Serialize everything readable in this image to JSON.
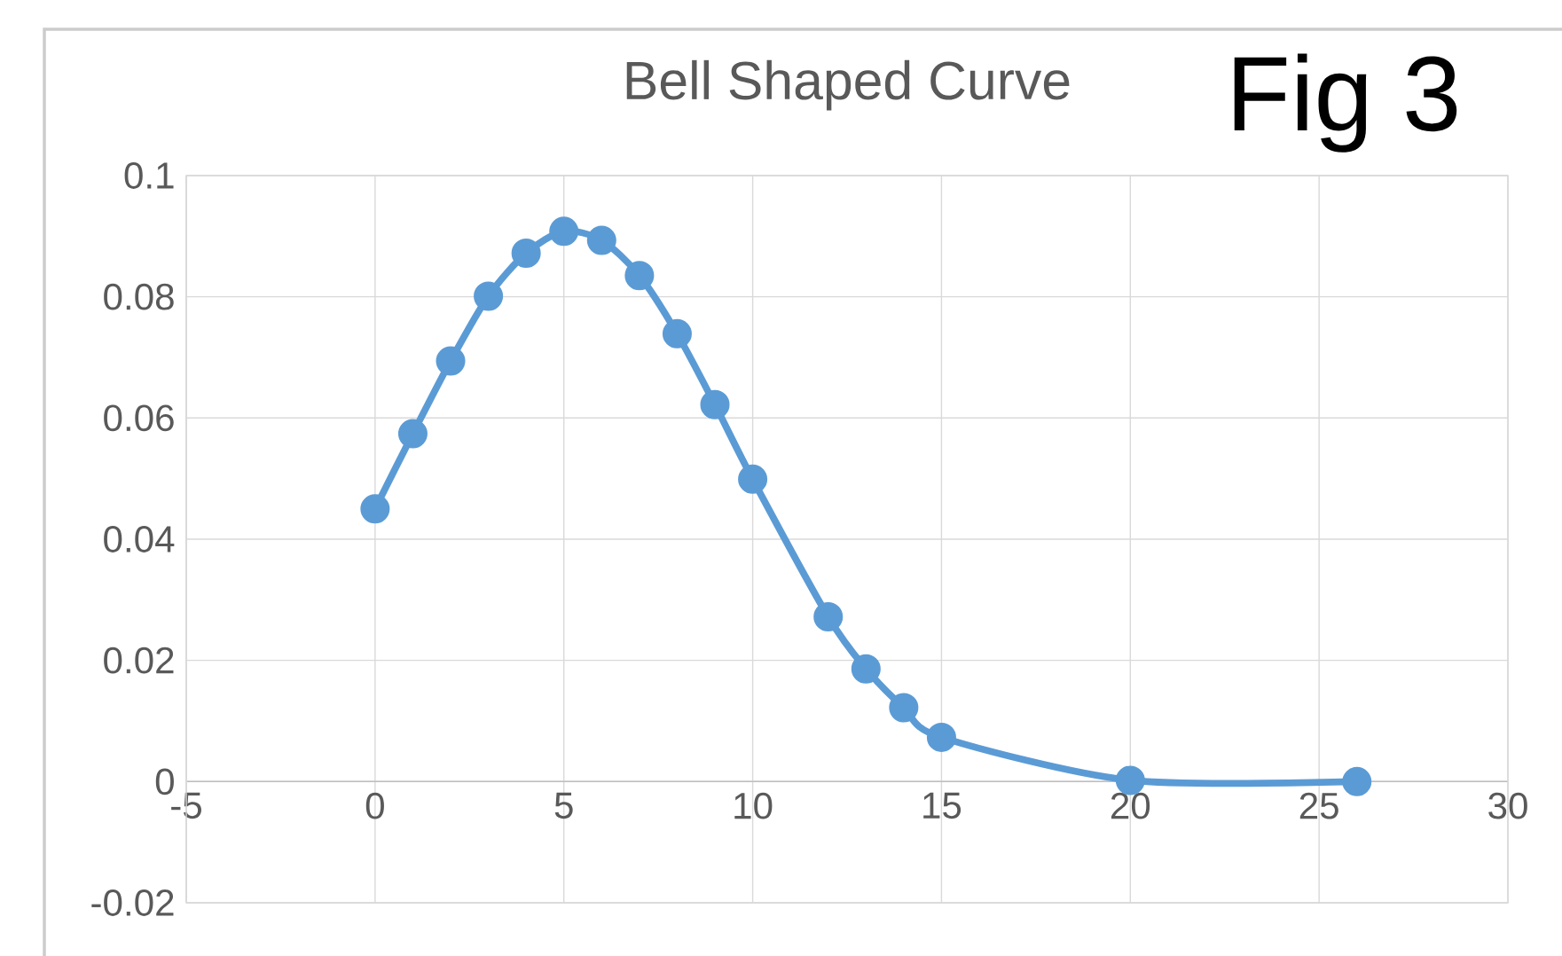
{
  "chart_data": {
    "type": "line",
    "title": "Bell Shaped Curve",
    "annotations": [
      "Fig 3"
    ],
    "x": [
      0,
      1,
      2,
      3,
      4,
      5,
      6,
      7,
      8,
      9,
      10,
      12,
      13,
      14,
      15,
      20,
      26
    ],
    "values": [
      0.045,
      0.0574,
      0.0694,
      0.0801,
      0.0872,
      0.0908,
      0.0893,
      0.0835,
      0.0739,
      0.0622,
      0.0499,
      0.0272,
      0.0186,
      0.0122,
      0.0073,
      0.0002,
      0
    ],
    "color": "#5b9bd5",
    "marker": "circle",
    "grid": true,
    "xlim": [
      -5,
      30
    ],
    "xticks": [
      -5,
      0,
      5,
      10,
      15,
      20,
      25,
      30
    ],
    "ylim": [
      -0.02,
      0.1
    ],
    "yticks": [
      -0.02,
      0,
      0.02,
      0.04,
      0.06,
      0.08,
      0.1
    ]
  }
}
